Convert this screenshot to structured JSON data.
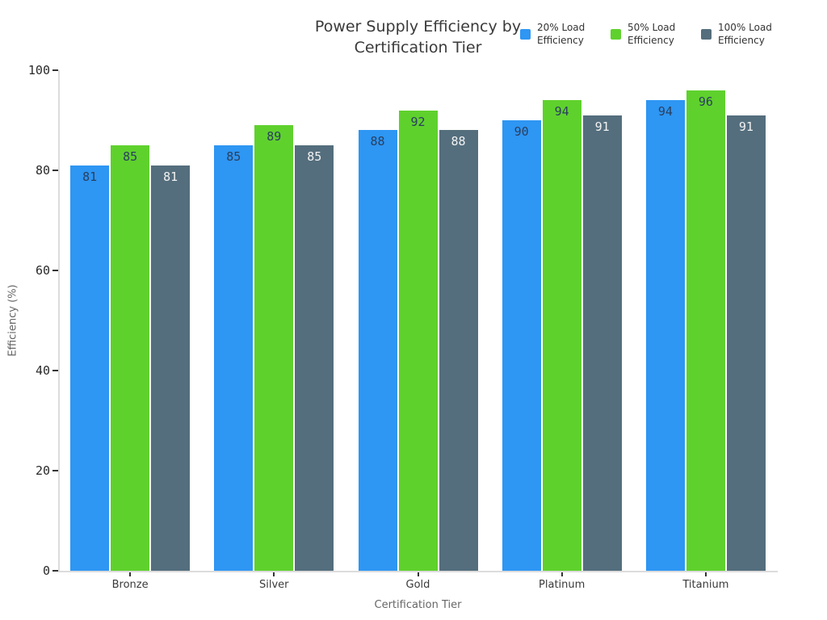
{
  "chart": {
    "title_lines": [
      "Power Supply Efficiency by",
      "Certification Tier"
    ]
  },
  "chart_data": {
    "type": "bar",
    "title": "Power Supply Efficiency by Certification Tier",
    "xlabel": "Certification Tier",
    "ylabel": "Efficiency (%)",
    "categories": [
      "Bronze",
      "Silver",
      "Gold",
      "Platinum",
      "Titanium"
    ],
    "series": [
      {
        "name": "20% Load Efficiency",
        "color": "#2E96F3",
        "label_color": "#2a3f5f",
        "values": [
          81,
          85,
          88,
          90,
          94
        ]
      },
      {
        "name": "50% Load Efficiency",
        "color": "#5FD12D",
        "label_color": "#2a3f5f",
        "values": [
          85,
          89,
          92,
          94,
          96
        ]
      },
      {
        "name": "100% Load Efficiency",
        "color": "#546E7D",
        "label_color": "#f2f2f2",
        "values": [
          81,
          85,
          88,
          91,
          91
        ]
      }
    ],
    "ylim": [
      0,
      100
    ],
    "yticks": [
      0,
      20,
      40,
      60,
      80,
      100
    ],
    "grid": false,
    "legend_position": "top-right",
    "bar_value_labels": true
  }
}
